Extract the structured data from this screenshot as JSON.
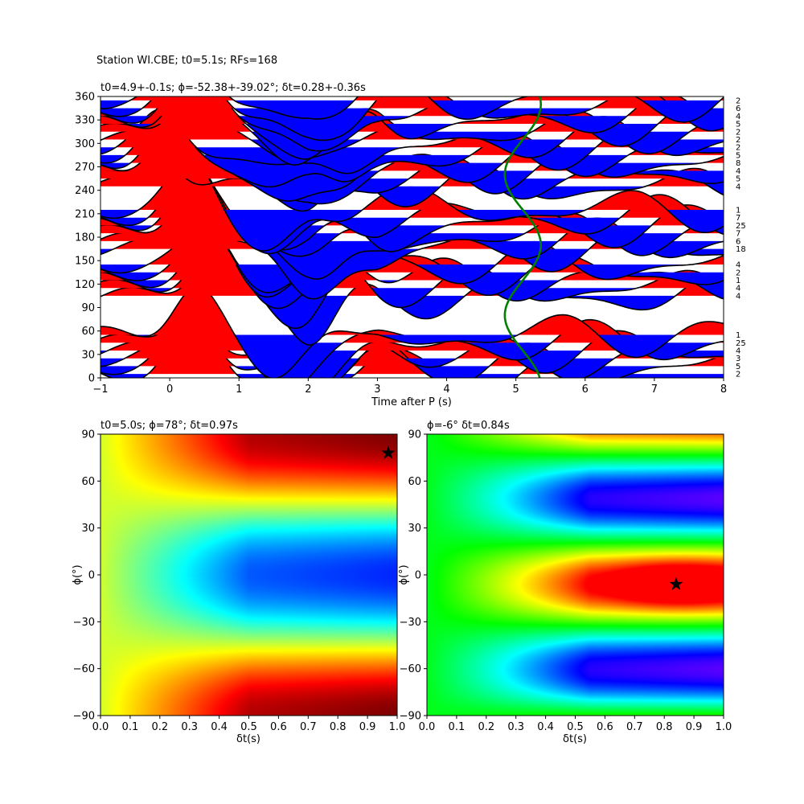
{
  "figure": {
    "suptitle": "Station WI.CBE; t0=5.1s; RFs=168"
  },
  "chart_data": [
    {
      "type": "line",
      "panel": "receiver-functions",
      "title": "t0=4.9+-0.1s; ϕ=-52.38+-39.02°; δt=0.28+-0.36s",
      "xlabel": "Time after P (s)",
      "ylabel": "",
      "xlim": [
        -1,
        8
      ],
      "ylim": [
        0,
        360
      ],
      "xticks": [
        "−1",
        "0",
        "1",
        "2",
        "3",
        "4",
        "5",
        "6",
        "7",
        "8"
      ],
      "yticks": [
        "0",
        "30",
        "60",
        "90",
        "120",
        "150",
        "180",
        "210",
        "240",
        "270",
        "300",
        "330",
        "360"
      ],
      "fill_positive_color": "#ff0000",
      "fill_negative_color": "#0000ff",
      "trace_color": "#000000",
      "t0_curve_color": "#008000",
      "series": [
        {
          "baz": 5,
          "count": "2"
        },
        {
          "baz": 15,
          "count": "5"
        },
        {
          "baz": 25,
          "count": "3"
        },
        {
          "baz": 35,
          "count": "4"
        },
        {
          "baz": 45,
          "count": "25"
        },
        {
          "baz": 55,
          "count": "1"
        },
        {
          "baz": 105,
          "count": "4"
        },
        {
          "baz": 115,
          "count": "4"
        },
        {
          "baz": 125,
          "count": "1"
        },
        {
          "baz": 135,
          "count": "2"
        },
        {
          "baz": 145,
          "count": "4"
        },
        {
          "baz": 165,
          "count": "18"
        },
        {
          "baz": 175,
          "count": "6"
        },
        {
          "baz": 185,
          "count": "7"
        },
        {
          "baz": 195,
          "count": "25"
        },
        {
          "baz": 205,
          "count": "7"
        },
        {
          "baz": 215,
          "count": "1"
        },
        {
          "baz": 245,
          "count": "4"
        },
        {
          "baz": 255,
          "count": "5"
        },
        {
          "baz": 265,
          "count": "4"
        },
        {
          "baz": 275,
          "count": "8"
        },
        {
          "baz": 285,
          "count": "5"
        },
        {
          "baz": 295,
          "count": "2"
        },
        {
          "baz": 305,
          "count": "2"
        },
        {
          "baz": 315,
          "count": "2"
        },
        {
          "baz": 325,
          "count": "5"
        },
        {
          "baz": 335,
          "count": "4"
        },
        {
          "baz": 345,
          "count": "6"
        },
        {
          "baz": 355,
          "count": "2"
        }
      ]
    },
    {
      "type": "heatmap",
      "panel": "grid-search-1",
      "title": "t0=5.0s; ϕ=78°; δt=0.97s",
      "xlabel": "δt(s)",
      "ylabel": "ϕ(°)",
      "xlim": [
        0,
        1
      ],
      "ylim": [
        -90,
        90
      ],
      "xticks": [
        "0.0",
        "0.1",
        "0.2",
        "0.3",
        "0.4",
        "0.5",
        "0.6",
        "0.7",
        "0.8",
        "0.9",
        "1.0"
      ],
      "yticks": [
        "−90",
        "−60",
        "−30",
        "0",
        "30",
        "60",
        "90"
      ],
      "colormap": "jet",
      "best": {
        "dt": 0.97,
        "phi": 78
      }
    },
    {
      "type": "heatmap",
      "panel": "grid-search-2",
      "title": "ϕ=-6° δt=0.84s",
      "xlabel": "δt(s)",
      "ylabel": "ϕ(°)",
      "xlim": [
        0,
        1
      ],
      "ylim": [
        -90,
        90
      ],
      "xticks": [
        "0.0",
        "0.1",
        "0.2",
        "0.3",
        "0.4",
        "0.5",
        "0.6",
        "0.7",
        "0.8",
        "0.9",
        "1.0"
      ],
      "yticks": [
        "−90",
        "−60",
        "−30",
        "0",
        "30",
        "60",
        "90"
      ],
      "colormap": "hsv",
      "best": {
        "dt": 0.84,
        "phi": -6
      }
    }
  ]
}
